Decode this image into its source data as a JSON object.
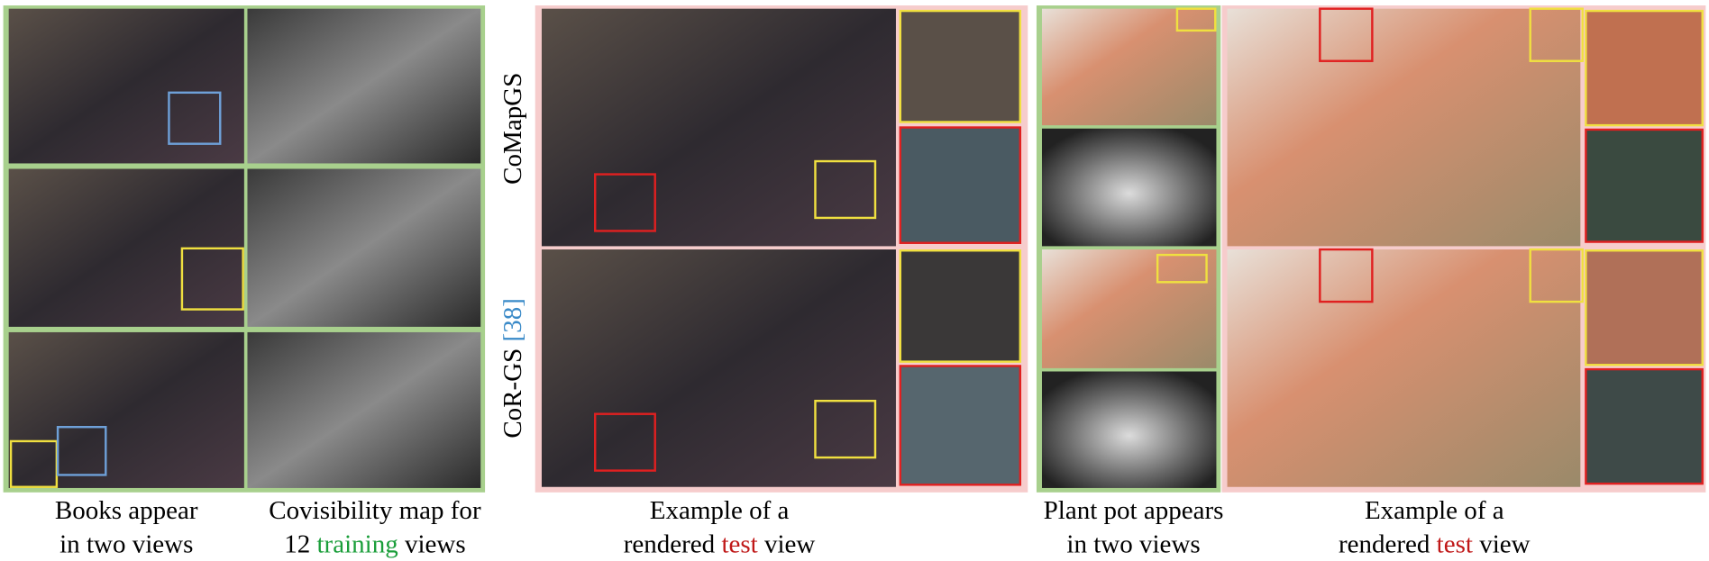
{
  "method_labels": {
    "comapgs": "CoMapGS",
    "corgs": "CoR-GS",
    "corgs_ref": "[38]"
  },
  "captions": [
    {
      "line1": "Books appear",
      "line2": "in two views"
    },
    {
      "line1": "Covisibility map for",
      "line2_pre": "12 ",
      "line2_hl": "training",
      "line2_post": " views"
    },
    {
      "line1": "Example of a",
      "line2_pre": "rendered ",
      "line2_hl": "test",
      "line2_post": " view"
    },
    {
      "line1": "Plant pot appears",
      "line2": "in two views"
    },
    {
      "line1": "Example of a",
      "line2_pre": "rendered ",
      "line2_hl": "test",
      "line2_post": " view"
    }
  ]
}
